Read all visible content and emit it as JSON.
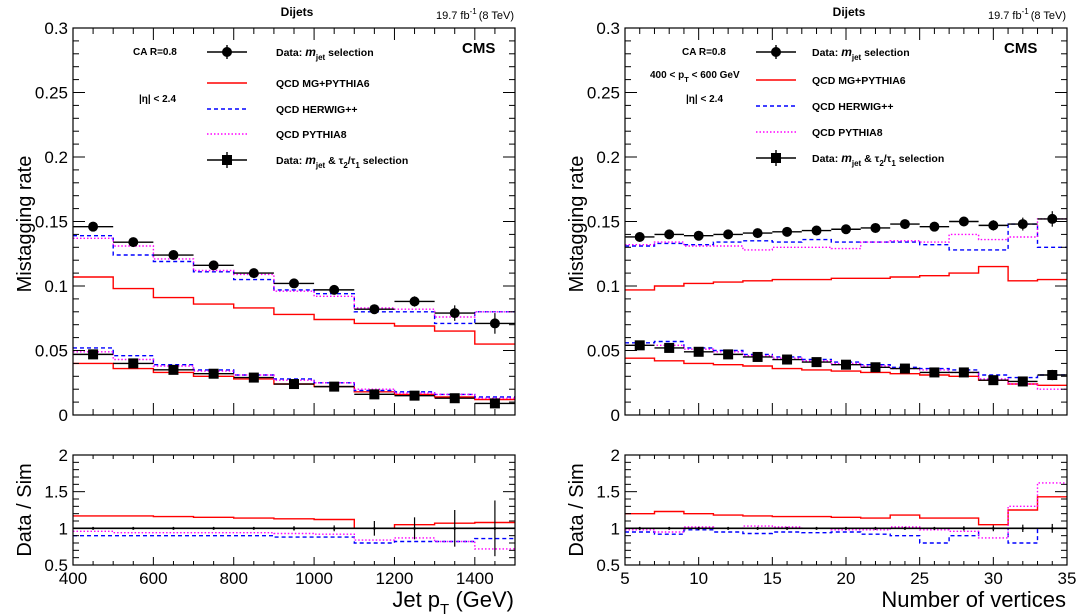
{
  "chart_data": [
    {
      "type": "step-line",
      "panel": "left-main",
      "header": {
        "title": "Dijets",
        "lumi_value": "19.7 fb",
        "lumi_exp": "-1",
        "energy": "(8 TeV)"
      },
      "cms_label": "CMS",
      "annotations": {
        "algo": "CA R=0.8",
        "eta_pre": "|η| < 2.4"
      },
      "ylabel": "Mistagging rate",
      "xlim": [
        400,
        1500
      ],
      "ylim": [
        0,
        0.3
      ],
      "yticks": [
        "0",
        "0.05",
        "0.1",
        "0.15",
        "0.2",
        "0.25",
        "0.3"
      ],
      "bin_edges": [
        400,
        500,
        600,
        700,
        800,
        900,
        1000,
        1100,
        1200,
        1300,
        1400,
        1500
      ],
      "legend": {
        "data_mjet": {
          "pre": "Data: ",
          "m": "m",
          "jet": "jet",
          "post": "  selection"
        },
        "mg": "QCD MG+PYTHIA6",
        "herwig": "QCD HERWIG++",
        "py8": "QCD PYTHIA8",
        "data_tau": {
          "pre": "Data: ",
          "m": "m",
          "jet": "jet",
          "amp": "  & τ",
          "s2": "2",
          "slash": "/τ",
          "s1": "1",
          "post": " selection"
        }
      },
      "series": [
        {
          "name": "QCD MG+PYTHIA6",
          "group": "mjet",
          "style": "mg",
          "values": [
            0.107,
            0.098,
            0.091,
            0.086,
            0.083,
            0.078,
            0.074,
            0.071,
            0.069,
            0.065,
            0.055
          ]
        },
        {
          "name": "QCD HERWIG++",
          "group": "mjet",
          "style": "herwig",
          "values": [
            0.139,
            0.124,
            0.119,
            0.111,
            0.105,
            0.097,
            0.094,
            0.08,
            0.08,
            0.071,
            0.08
          ]
        },
        {
          "name": "QCD PYTHIA8",
          "group": "mjet",
          "style": "py8",
          "values": [
            0.137,
            0.131,
            0.121,
            0.112,
            0.109,
            0.096,
            0.092,
            0.083,
            0.082,
            0.076,
            0.08
          ]
        },
        {
          "name": "QCD MG+PYTHIA6",
          "group": "tau",
          "style": "mg",
          "values": [
            0.04,
            0.036,
            0.033,
            0.03,
            0.028,
            0.024,
            0.022,
            0.018,
            0.016,
            0.014,
            0.012
          ]
        },
        {
          "name": "QCD HERWIG++",
          "group": "tau",
          "style": "herwig",
          "values": [
            0.052,
            0.046,
            0.039,
            0.035,
            0.031,
            0.028,
            0.025,
            0.019,
            0.018,
            0.016,
            0.014
          ]
        },
        {
          "name": "QCD PYTHIA8",
          "group": "tau",
          "style": "py8",
          "values": [
            0.049,
            0.043,
            0.038,
            0.034,
            0.031,
            0.027,
            0.025,
            0.02,
            0.017,
            0.016,
            0.013
          ]
        }
      ],
      "data_points": [
        {
          "name": "Data: m_jet selection",
          "marker": "circle",
          "x": [
            450,
            550,
            650,
            750,
            850,
            950,
            1050,
            1150,
            1250,
            1350,
            1450
          ],
          "y": [
            0.146,
            0.134,
            0.124,
            0.116,
            0.11,
            0.102,
            0.097,
            0.082,
            0.088,
            0.079,
            0.071
          ],
          "err": [
            0.002,
            0.002,
            0.002,
            0.002,
            0.002,
            0.002,
            0.002,
            0.003,
            0.004,
            0.006,
            0.008
          ]
        },
        {
          "name": "Data: m_jet & tau2/tau1 selection",
          "marker": "square",
          "x": [
            450,
            550,
            650,
            750,
            850,
            950,
            1050,
            1150,
            1250,
            1350,
            1450
          ],
          "y": [
            0.047,
            0.04,
            0.035,
            0.032,
            0.029,
            0.024,
            0.022,
            0.016,
            0.015,
            0.013,
            0.009
          ],
          "err": [
            0.002,
            0.002,
            0.002,
            0.001,
            0.001,
            0.001,
            0.002,
            0.002,
            0.003,
            0.003,
            0.003
          ]
        }
      ]
    },
    {
      "type": "step-line",
      "panel": "left-ratio",
      "ylabel": "Data / Sim",
      "xlabel": {
        "main": "Jet p",
        "sub": "T",
        "unit": " (GeV)"
      },
      "xlim": [
        400,
        1500
      ],
      "ylim": [
        0.5,
        2
      ],
      "yticks": [
        "0.5",
        "1",
        "1.5",
        "2"
      ],
      "xticks": [
        "400",
        "600",
        "800",
        "1000",
        "1200",
        "1400"
      ],
      "bin_edges": [
        400,
        500,
        600,
        700,
        800,
        900,
        1000,
        1100,
        1200,
        1300,
        1400,
        1500
      ],
      "series": [
        {
          "name": "QCD MG+PYTHIA6",
          "style": "mg",
          "values": [
            1.17,
            1.17,
            1.16,
            1.15,
            1.14,
            1.13,
            1.12,
            1.0,
            1.05,
            1.07,
            1.08
          ]
        },
        {
          "name": "QCD HERWIG++",
          "style": "herwig",
          "values": [
            0.9,
            0.9,
            0.9,
            0.9,
            0.9,
            0.88,
            0.88,
            0.8,
            0.82,
            0.82,
            0.86
          ]
        },
        {
          "name": "QCD PYTHIA8",
          "style": "py8",
          "values": [
            0.96,
            0.94,
            0.94,
            0.94,
            0.94,
            0.93,
            0.92,
            0.84,
            0.87,
            0.82,
            0.72
          ]
        }
      ],
      "reference_line": 1.0,
      "data_points": [
        {
          "name": "ratio",
          "marker": "dot",
          "x": [
            450,
            550,
            650,
            750,
            850,
            950,
            1050,
            1150,
            1250,
            1350,
            1450
          ],
          "y": [
            1.0,
            1.0,
            1.0,
            1.0,
            1.0,
            1.0,
            1.0,
            1.0,
            1.0,
            1.0,
            1.0
          ],
          "err": [
            0.02,
            0.02,
            0.02,
            0.02,
            0.02,
            0.03,
            0.04,
            0.1,
            0.15,
            0.25,
            0.38
          ]
        }
      ]
    },
    {
      "type": "step-line",
      "panel": "right-main",
      "header": {
        "title": "Dijets",
        "lumi_value": "19.7 fb",
        "lumi_exp": "-1",
        "energy": "(8 TeV)"
      },
      "cms_label": "CMS",
      "annotations": {
        "algo": "CA R=0.8",
        "pt_pre": "400 < p",
        "pt_sub": "T",
        "pt_post": " < 600 GeV",
        "eta_pre": "|η| < 2.4"
      },
      "ylabel": "Mistagging rate",
      "xlim": [
        5,
        35
      ],
      "ylim": [
        0,
        0.3
      ],
      "yticks": [
        "0",
        "0.05",
        "0.1",
        "0.15",
        "0.2",
        "0.25",
        "0.3"
      ],
      "bin_edges": [
        5,
        7,
        9,
        11,
        13,
        15,
        17,
        19,
        21,
        23,
        25,
        27,
        29,
        31,
        33,
        35
      ],
      "legend": {
        "data_mjet": {
          "pre": "Data: ",
          "m": "m",
          "jet": "jet",
          "post": "  selection"
        },
        "mg": "QCD MG+PYTHIA6",
        "herwig": "QCD HERWIG++",
        "py8": "QCD PYTHIA8",
        "data_tau": {
          "pre": "Data: ",
          "m": "m",
          "jet": "jet",
          "amp": "  & τ",
          "s2": "2",
          "slash": "/τ",
          "s1": "1",
          "post": " selection"
        }
      },
      "series": [
        {
          "name": "QCD MG+PYTHIA6",
          "group": "mjet",
          "style": "mg",
          "values": [
            0.097,
            0.1,
            0.102,
            0.103,
            0.104,
            0.105,
            0.105,
            0.106,
            0.106,
            0.107,
            0.108,
            0.11,
            0.115,
            0.104,
            0.105
          ]
        },
        {
          "name": "QCD HERWIG++",
          "group": "mjet",
          "style": "herwig",
          "values": [
            0.131,
            0.133,
            0.132,
            0.134,
            0.135,
            0.134,
            0.136,
            0.134,
            0.134,
            0.134,
            0.132,
            0.128,
            0.128,
            0.148,
            0.13
          ]
        },
        {
          "name": "QCD PYTHIA8",
          "group": "mjet",
          "style": "py8",
          "values": [
            0.132,
            0.134,
            0.131,
            0.131,
            0.128,
            0.13,
            0.13,
            0.129,
            0.134,
            0.135,
            0.134,
            0.14,
            0.136,
            0.138,
            0.152
          ]
        },
        {
          "name": "QCD MG+PYTHIA6",
          "group": "tau",
          "style": "mg",
          "values": [
            0.044,
            0.042,
            0.04,
            0.039,
            0.038,
            0.036,
            0.035,
            0.034,
            0.033,
            0.032,
            0.031,
            0.03,
            0.027,
            0.024,
            0.023
          ]
        },
        {
          "name": "QCD HERWIG++",
          "group": "tau",
          "style": "herwig",
          "values": [
            0.056,
            0.057,
            0.052,
            0.05,
            0.047,
            0.045,
            0.043,
            0.041,
            0.039,
            0.037,
            0.036,
            0.035,
            0.031,
            0.029,
            0.031
          ]
        },
        {
          "name": "QCD PYTHIA8",
          "group": "tau",
          "style": "py8",
          "values": [
            0.054,
            0.054,
            0.051,
            0.049,
            0.046,
            0.044,
            0.042,
            0.04,
            0.038,
            0.036,
            0.035,
            0.033,
            0.028,
            0.024,
            0.02
          ]
        }
      ],
      "data_points": [
        {
          "name": "Data: m_jet selection",
          "marker": "circle",
          "x": [
            6,
            8,
            10,
            12,
            14,
            16,
            18,
            20,
            22,
            24,
            26,
            28,
            30,
            32,
            34
          ],
          "y": [
            0.138,
            0.14,
            0.139,
            0.14,
            0.141,
            0.142,
            0.143,
            0.144,
            0.145,
            0.148,
            0.146,
            0.15,
            0.147,
            0.148,
            0.152
          ],
          "err": [
            0.002,
            0.002,
            0.002,
            0.002,
            0.002,
            0.002,
            0.002,
            0.002,
            0.002,
            0.002,
            0.002,
            0.003,
            0.004,
            0.005,
            0.006
          ]
        },
        {
          "name": "Data: m_jet & tau2/tau1 selection",
          "marker": "square",
          "x": [
            6,
            8,
            10,
            12,
            14,
            16,
            18,
            20,
            22,
            24,
            26,
            28,
            30,
            32,
            34
          ],
          "y": [
            0.054,
            0.052,
            0.049,
            0.047,
            0.045,
            0.043,
            0.041,
            0.039,
            0.037,
            0.036,
            0.033,
            0.033,
            0.027,
            0.026,
            0.031
          ],
          "err": [
            0.002,
            0.002,
            0.001,
            0.001,
            0.001,
            0.001,
            0.001,
            0.001,
            0.001,
            0.001,
            0.001,
            0.002,
            0.002,
            0.003,
            0.004
          ]
        }
      ]
    },
    {
      "type": "step-line",
      "panel": "right-ratio",
      "ylabel": "Data / Sim",
      "xlabel": {
        "main": "Number of vertices"
      },
      "xlim": [
        5,
        35
      ],
      "ylim": [
        0.5,
        2
      ],
      "yticks": [
        "0.5",
        "1",
        "1.5",
        "2"
      ],
      "xticks": [
        "5",
        "10",
        "15",
        "20",
        "25",
        "30",
        "35"
      ],
      "bin_edges": [
        5,
        7,
        9,
        11,
        13,
        15,
        17,
        19,
        21,
        23,
        25,
        27,
        29,
        31,
        33,
        35
      ],
      "series": [
        {
          "name": "QCD MG+PYTHIA6",
          "style": "mg",
          "values": [
            1.2,
            1.23,
            1.2,
            1.18,
            1.17,
            1.16,
            1.16,
            1.15,
            1.14,
            1.18,
            1.14,
            1.14,
            1.05,
            1.25,
            1.43
          ]
        },
        {
          "name": "QCD HERWIG++",
          "style": "herwig",
          "values": [
            0.95,
            0.92,
            0.98,
            0.95,
            0.93,
            0.95,
            0.94,
            0.95,
            0.92,
            0.9,
            0.8,
            0.9,
            1.0,
            0.8,
            1.0
          ]
        },
        {
          "name": "QCD PYTHIA8",
          "style": "py8",
          "values": [
            0.98,
            0.95,
            1.02,
            1.0,
            1.03,
            1.02,
            1.0,
            0.98,
            0.98,
            1.02,
            0.98,
            0.96,
            0.87,
            1.3,
            1.62
          ]
        }
      ],
      "reference_line": 1.0,
      "data_points": [
        {
          "name": "ratio",
          "marker": "dot",
          "x": [
            6,
            8,
            10,
            12,
            14,
            16,
            18,
            20,
            22,
            24,
            26,
            28,
            30,
            32,
            34
          ],
          "y": [
            1.0,
            1.0,
            1.0,
            1.0,
            1.0,
            1.0,
            1.0,
            1.0,
            1.0,
            1.0,
            1.0,
            1.0,
            1.0,
            1.0,
            1.0
          ],
          "err": [
            0.02,
            0.02,
            0.02,
            0.02,
            0.02,
            0.02,
            0.02,
            0.02,
            0.02,
            0.02,
            0.02,
            0.03,
            0.04,
            0.05,
            0.06
          ]
        }
      ]
    }
  ],
  "styles": {
    "mg": {
      "color": "#ff0000",
      "dash": ""
    },
    "herwig": {
      "color": "#0000ff",
      "dash": "4,3"
    },
    "py8": {
      "color": "#ff00ff",
      "dash": "1.5,2"
    },
    "data": {
      "color": "#000000"
    }
  }
}
